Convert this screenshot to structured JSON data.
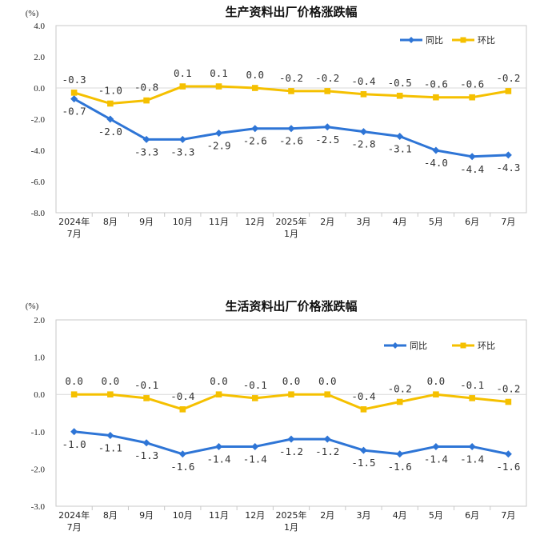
{
  "chart_data": [
    {
      "type": "line",
      "title": "生产资料出厂价格涨跌幅",
      "ylabel": "(%)",
      "ylim": [
        -8.0,
        4.0
      ],
      "yticks": [
        "4.0",
        "2.0",
        "0.0",
        "-2.0",
        "-4.0",
        "-6.0",
        "-8.0"
      ],
      "ytick_values": [
        4,
        2,
        0,
        -2,
        -4,
        -6,
        -8
      ],
      "categories": [
        "2024年\n7月",
        "8月",
        "9月",
        "10月",
        "11月",
        "12月",
        "2025年\n1月",
        "2月",
        "3月",
        "4月",
        "5月",
        "6月",
        "7月"
      ],
      "series": [
        {
          "name": "同比",
          "color": "#2e75d6",
          "marker": "diamond",
          "values": [
            -0.7,
            -2.0,
            -3.3,
            -3.3,
            -2.9,
            -2.6,
            -2.6,
            -2.5,
            -2.8,
            -3.1,
            -4.0,
            -4.4,
            -4.3
          ],
          "labels": [
            "-0.7",
            "-2.0",
            "-3.3",
            "-3.3",
            "-2.9",
            "-2.6",
            "-2.6",
            "-2.5",
            "-2.8",
            "-3.1",
            "-4.0",
            "-4.4",
            "-4.3"
          ]
        },
        {
          "name": "环比",
          "color": "#f5c000",
          "marker": "square",
          "values": [
            -0.3,
            -1.0,
            -0.8,
            0.1,
            0.1,
            0.0,
            -0.2,
            -0.2,
            -0.4,
            -0.5,
            -0.6,
            -0.6,
            -0.2
          ],
          "labels": [
            "-0.3",
            "-1.0",
            "-0.8",
            "0.1",
            "0.1",
            "0.0",
            "-0.2",
            "-0.2",
            "-0.4",
            "-0.5",
            "-0.6",
            "-0.6",
            "-0.2"
          ]
        }
      ],
      "legend": "top-right"
    },
    {
      "type": "line",
      "title": "生活资料出厂价格涨跌幅",
      "ylabel": "(%)",
      "ylim": [
        -3.0,
        2.0
      ],
      "yticks": [
        "2.0",
        "1.0",
        "0.0",
        "-1.0",
        "-2.0",
        "-3.0"
      ],
      "ytick_values": [
        2,
        1,
        0,
        -1,
        -2,
        -3
      ],
      "categories": [
        "2024年\n7月",
        "8月",
        "9月",
        "10月",
        "11月",
        "12月",
        "2025年\n1月",
        "2月",
        "3月",
        "4月",
        "5月",
        "6月",
        "7月"
      ],
      "series": [
        {
          "name": "同比",
          "color": "#2e75d6",
          "marker": "diamond",
          "values": [
            -1.0,
            -1.1,
            -1.3,
            -1.6,
            -1.4,
            -1.4,
            -1.2,
            -1.2,
            -1.5,
            -1.6,
            -1.4,
            -1.4,
            -1.6
          ],
          "labels": [
            "-1.0",
            "-1.1",
            "-1.3",
            "-1.6",
            "-1.4",
            "-1.4",
            "-1.2",
            "-1.2",
            "-1.5",
            "-1.6",
            "-1.4",
            "-1.4",
            "-1.6"
          ]
        },
        {
          "name": "环比",
          "color": "#f5c000",
          "marker": "square",
          "values": [
            0.0,
            0.0,
            -0.1,
            -0.4,
            0.0,
            -0.1,
            0.0,
            0.0,
            -0.4,
            -0.2,
            0.0,
            -0.1,
            -0.2
          ],
          "labels": [
            "0.0",
            "0.0",
            "-0.1",
            "-0.4",
            "0.0",
            "-0.1",
            "0.0",
            "0.0",
            "-0.4",
            "-0.2",
            "0.0",
            "-0.1",
            "-0.2"
          ]
        }
      ],
      "legend": "top-right"
    }
  ]
}
